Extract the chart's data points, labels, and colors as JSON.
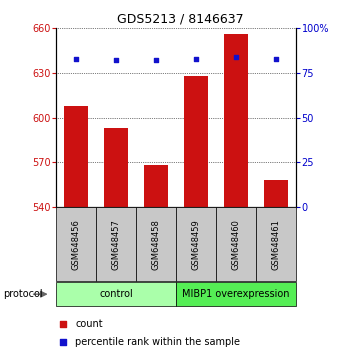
{
  "title": "GDS5213 / 8146637",
  "samples": [
    "GSM648456",
    "GSM648457",
    "GSM648458",
    "GSM648459",
    "GSM648460",
    "GSM648461"
  ],
  "counts": [
    608,
    593,
    568,
    628,
    656,
    558
  ],
  "percentile_ranks": [
    83,
    82,
    82,
    83,
    84,
    83
  ],
  "ylim_left": [
    540,
    660
  ],
  "ylim_right": [
    0,
    100
  ],
  "yticks_left": [
    540,
    570,
    600,
    630,
    660
  ],
  "yticks_right": [
    0,
    25,
    50,
    75,
    100
  ],
  "bar_color": "#cc1111",
  "square_color": "#1111cc",
  "bar_width": 0.6,
  "groups": [
    {
      "label": "control",
      "samples": [
        0,
        1,
        2
      ],
      "color": "#aaffaa"
    },
    {
      "label": "MIBP1 overexpression",
      "samples": [
        3,
        4,
        5
      ],
      "color": "#55ee55"
    }
  ],
  "protocol_label": "protocol",
  "legend_items": [
    "count",
    "percentile rank within the sample"
  ],
  "legend_colors": [
    "#cc1111",
    "#1111cc"
  ],
  "ylabel_right_color": "#0000cc",
  "label_bg": "#c8c8c8",
  "title_fontsize": 9,
  "tick_fontsize": 7,
  "bar_label_fontsize": 6,
  "legend_fontsize": 7,
  "protocol_fontsize": 7
}
